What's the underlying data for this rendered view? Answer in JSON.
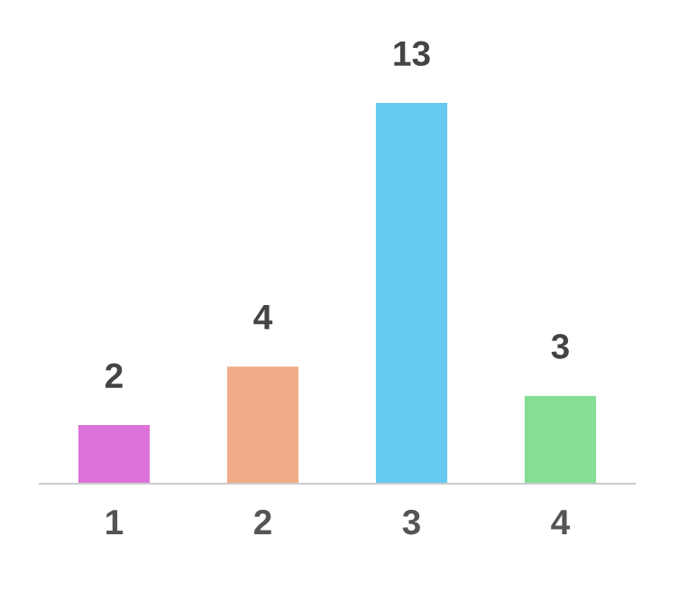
{
  "chart_data": {
    "type": "bar",
    "categories": [
      "1",
      "2",
      "3",
      "4"
    ],
    "values": [
      2,
      4,
      13,
      3
    ],
    "colors": [
      "#dc72d8",
      "#f2ab88",
      "#66c9f2",
      "#84de94"
    ],
    "data_labels": true,
    "grid": false,
    "legend": false
  }
}
